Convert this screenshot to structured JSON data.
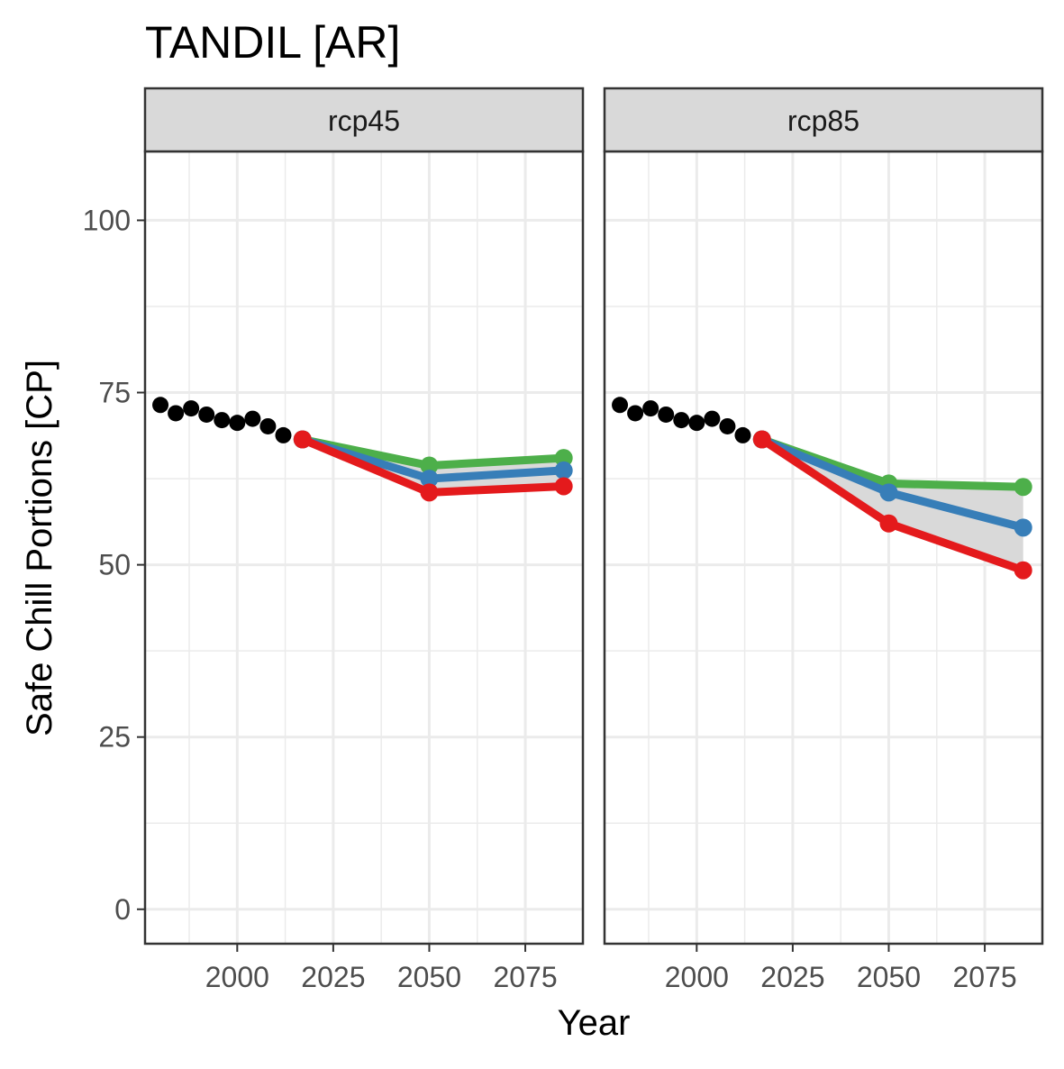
{
  "chart_data": {
    "type": "line",
    "title": "TANDIL [AR]",
    "xlabel": "Year",
    "ylabel": "Safe Chill Portions [CP]",
    "xlim": [
      1976,
      2090
    ],
    "ylim": [
      -5,
      110
    ],
    "xticks": [
      2000,
      2025,
      2050,
      2075
    ],
    "yticks": [
      0,
      25,
      50,
      75,
      100
    ],
    "grid": true,
    "legend": "none",
    "colors": {
      "historic": "#000000",
      "low": "#e41a1c",
      "mid": "#377eb8",
      "high": "#4daf4a",
      "ribbon": "#d9d9d9",
      "strip_fill": "#d9d9d9",
      "grid": "#ebebeb"
    },
    "historic": {
      "x": [
        1980,
        1984,
        1988,
        1992,
        1996,
        2000,
        2004,
        2008,
        2012,
        2017
      ],
      "y": [
        73.2,
        72.0,
        72.7,
        71.8,
        71.0,
        70.6,
        71.2,
        70.1,
        68.8,
        68.2
      ]
    },
    "panels": [
      {
        "strip": "rcp45",
        "x": [
          2017,
          2050,
          2085
        ],
        "series": [
          {
            "key": "high",
            "values": [
              68.2,
              64.4,
              65.5
            ]
          },
          {
            "key": "mid",
            "values": [
              68.2,
              62.5,
              63.7
            ]
          },
          {
            "key": "low",
            "values": [
              68.2,
              60.5,
              61.4
            ]
          }
        ]
      },
      {
        "strip": "rcp85",
        "x": [
          2017,
          2050,
          2085
        ],
        "series": [
          {
            "key": "high",
            "values": [
              68.2,
              61.8,
              61.3
            ]
          },
          {
            "key": "mid",
            "values": [
              68.2,
              60.5,
              55.4
            ]
          },
          {
            "key": "low",
            "values": [
              68.2,
              56.0,
              49.2
            ]
          }
        ]
      }
    ]
  }
}
